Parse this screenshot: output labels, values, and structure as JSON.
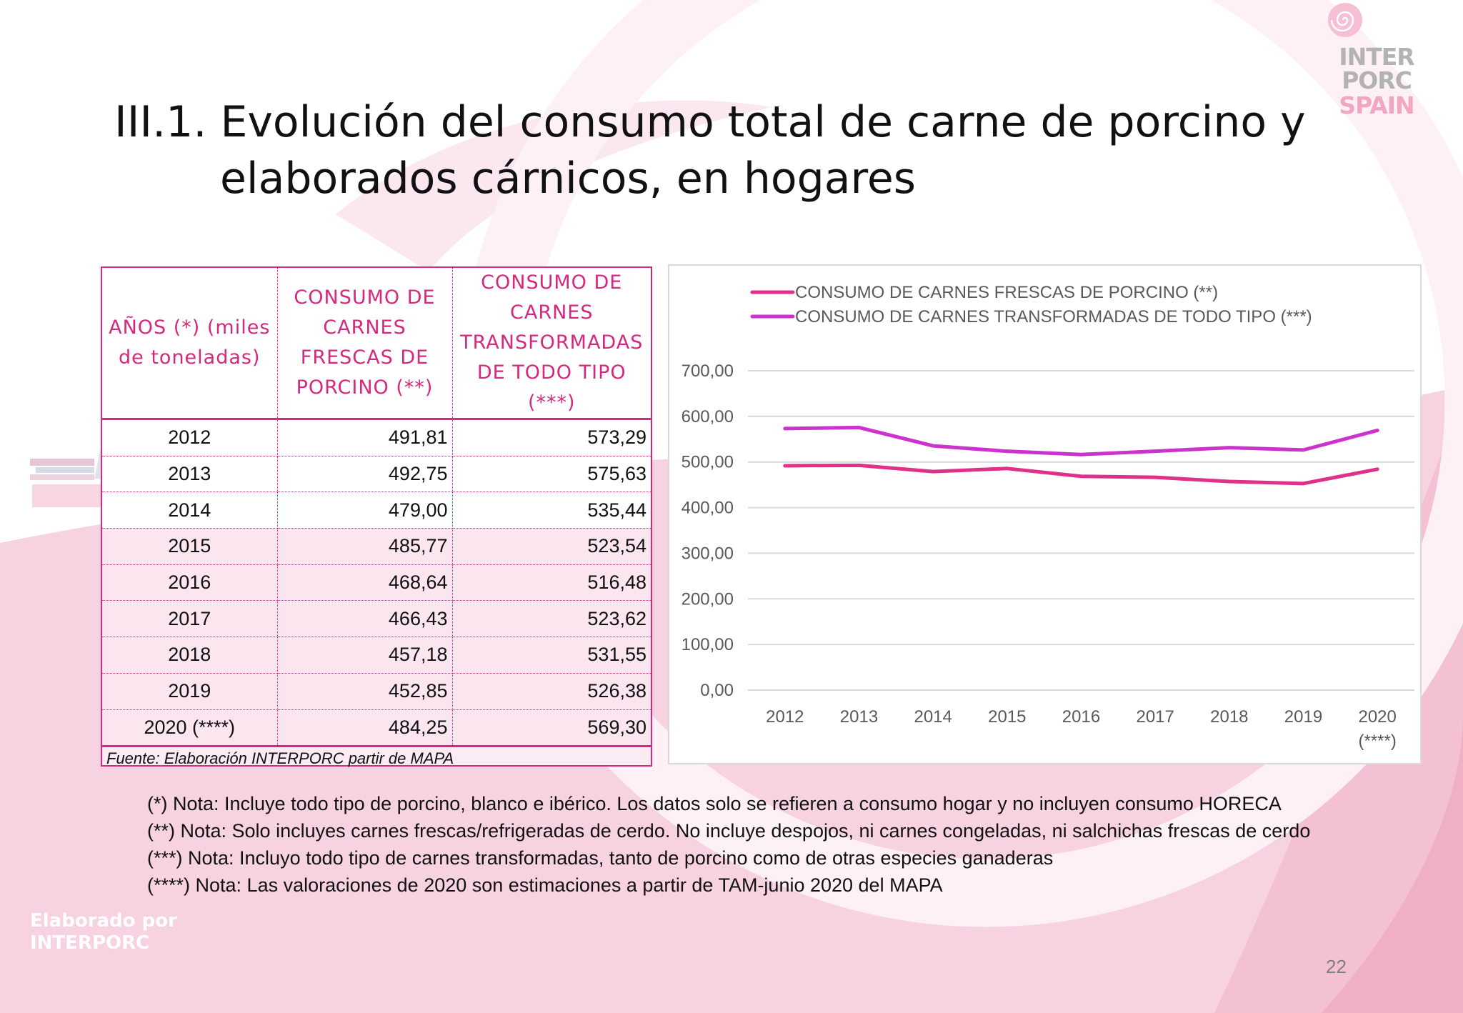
{
  "slide": {
    "title_line1": "III.1. Evolución del consumo total de carne de porcino y",
    "title_line2": "elaborados cárnicos, en hogares",
    "page_number": "22",
    "footer_line1": "Elaborado por",
    "footer_line2": "INTERPORC"
  },
  "logo": {
    "line1": "INTER",
    "line2": "PORC",
    "line3": "SPAIN"
  },
  "table": {
    "headers": [
      "AÑOS   (*) (miles de toneladas)",
      "CONSUMO DE CARNES FRESCAS DE PORCINO  (**)",
      "CONSUMO DE CARNES TRANSFORMADAS DE TODO TIPO (***)"
    ],
    "rows": [
      [
        "2012",
        "491,81",
        "573,29"
      ],
      [
        "2013",
        "492,75",
        "575,63"
      ],
      [
        "2014",
        "479,00",
        "535,44"
      ],
      [
        "2015",
        "485,77",
        "523,54"
      ],
      [
        "2016",
        "468,64",
        "516,48"
      ],
      [
        "2017",
        "466,43",
        "523,62"
      ],
      [
        "2018",
        "457,18",
        "531,55"
      ],
      [
        "2019",
        "452,85",
        "526,38"
      ],
      [
        "2020 (****)",
        "484,25",
        "569,30"
      ]
    ],
    "source": "Fuente: Elaboración INTERPORC  partir de MAPA"
  },
  "notes": [
    "(*) Nota: Incluye todo tipo de porcino, blanco e ibérico. Los datos solo se refieren a consumo hogar y no incluyen consumo HORECA",
    "(**) Nota: Solo incluyes carnes frescas/refrigeradas de cerdo. No incluye despojos, ni carnes congeladas, ni salchichas frescas de cerdo",
    "(***) Nota: Incluyo todo tipo de carnes transformadas, tanto de porcino como de otras especies ganaderas",
    "(****) Nota: Las valoraciones de 2020 son estimaciones a partir de TAM-junio 2020 del MAPA"
  ],
  "chart_data": {
    "type": "line",
    "categories": [
      "2012",
      "2013",
      "2014",
      "2015",
      "2016",
      "2017",
      "2018",
      "2019",
      "2020"
    ],
    "category_extra": [
      "",
      "",
      "",
      "",
      "",
      "",
      "",
      "",
      "(****)"
    ],
    "series": [
      {
        "name": "CONSUMO DE CARNES  FRESCAS DE PORCINO  (**)",
        "color": "#e0308a",
        "values": [
          491.81,
          492.75,
          479.0,
          485.77,
          468.64,
          466.43,
          457.18,
          452.85,
          484.25
        ]
      },
      {
        "name": "CONSUMO DE CARNES TRANSFORMADAS DE TODO TIPO (***)",
        "color": "#cc33cc",
        "values": [
          573.29,
          575.63,
          535.44,
          523.54,
          516.48,
          523.62,
          531.55,
          526.38,
          569.3
        ]
      }
    ],
    "y_ticks": [
      "0,00",
      "100,00",
      "200,00",
      "300,00",
      "400,00",
      "500,00",
      "600,00",
      "700,00"
    ],
    "ylim": [
      0,
      700
    ],
    "grid": true,
    "legend_position": "top-left"
  },
  "colors": {
    "accent": "#d6287e",
    "text": "#111111",
    "muted": "#7f7f7f"
  }
}
